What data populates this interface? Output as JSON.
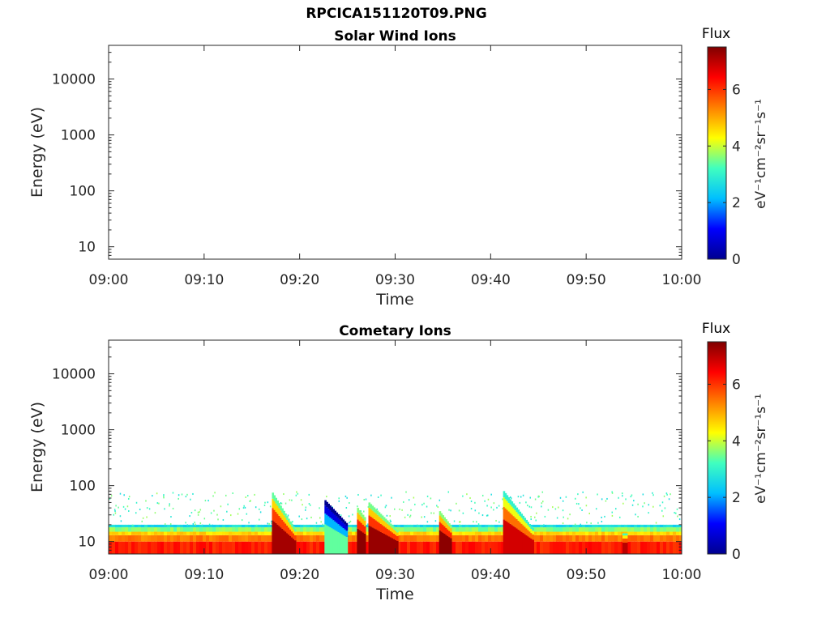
{
  "figure": {
    "title": "RPCICA151120T09.PNG",
    "colormap": [
      "#00008f",
      "#0000ff",
      "#00bfff",
      "#40ffbf",
      "#ffff00",
      "#ff8000",
      "#ff0000",
      "#800000"
    ]
  },
  "chart_data": [
    {
      "type": "heatmap",
      "title": "Solar Wind Ions",
      "xlabel": "Time",
      "ylabel": "Energy (eV)",
      "xticks": [
        "09:00",
        "09:10",
        "09:20",
        "09:30",
        "09:40",
        "09:50",
        "10:00"
      ],
      "xlim_minutes": [
        0,
        60
      ],
      "yscale": "log",
      "yticks": [
        10,
        100,
        1000,
        10000
      ],
      "ytick_labels": [
        "10",
        "100",
        "1000",
        "10000"
      ],
      "ylim": [
        6,
        40000
      ],
      "colorbar": {
        "label": "Flux",
        "unit": "eV⁻¹cm⁻²sr⁻¹s⁻¹",
        "range": [
          0,
          7.5
        ],
        "ticks": [
          0,
          2,
          4,
          6
        ]
      },
      "data_summary": "no data",
      "background_band": null,
      "events": []
    },
    {
      "type": "heatmap",
      "title": "Cometary Ions",
      "xlabel": "Time",
      "ylabel": "Energy (eV)",
      "xticks": [
        "09:00",
        "09:10",
        "09:20",
        "09:30",
        "09:40",
        "09:50",
        "10:00"
      ],
      "xlim_minutes": [
        0,
        60
      ],
      "yscale": "log",
      "yticks": [
        10,
        100,
        1000,
        10000
      ],
      "ytick_labels": [
        "10",
        "100",
        "1000",
        "10000"
      ],
      "ylim": [
        6,
        40000
      ],
      "colorbar": {
        "label": "Flux",
        "unit": "eV⁻¹cm⁻²sr⁻¹s⁻¹",
        "range": [
          0,
          7.5
        ],
        "ticks": [
          0,
          2,
          4,
          6
        ]
      },
      "data_summary": "low-energy cometary ion band below ~20 eV with sporadic counts up to ~80 eV and energy-dispersed flux enhancements",
      "background_band": [
        {
          "emin": 6,
          "emax": 10,
          "flux": 6.2
        },
        {
          "emin": 10,
          "emax": 13,
          "flux": 5.4
        },
        {
          "emin": 13,
          "emax": 15,
          "flux": 4.6
        },
        {
          "emin": 15,
          "emax": 18,
          "flux": 3.6
        },
        {
          "emin": 18,
          "emax": 20,
          "flux": 2.6
        }
      ],
      "sporadic_emax": 80,
      "events": [
        {
          "start_min": 17.1,
          "end_min": 19.6,
          "emax_start": 75,
          "emax_end": 15,
          "peak_flux": 7.2
        },
        {
          "start_min": 22.6,
          "end_min": 25.0,
          "emax_start": 55,
          "emax_end": 20,
          "peak_flux": 3.4
        },
        {
          "start_min": 26.0,
          "end_min": 26.9,
          "emax_start": 40,
          "emax_end": 25,
          "peak_flux": 7.4
        },
        {
          "start_min": 27.2,
          "end_min": 30.3,
          "emax_start": 50,
          "emax_end": 15,
          "peak_flux": 7.3
        },
        {
          "start_min": 34.6,
          "end_min": 35.9,
          "emax_start": 35,
          "emax_end": 18,
          "peak_flux": 7.4
        },
        {
          "start_min": 41.3,
          "end_min": 44.5,
          "emax_start": 80,
          "emax_end": 16,
          "peak_flux": 6.8
        },
        {
          "start_min": 53.8,
          "end_min": 54.3,
          "emax_start": 14,
          "emax_end": 14,
          "peak_flux": 7.0
        }
      ]
    }
  ]
}
